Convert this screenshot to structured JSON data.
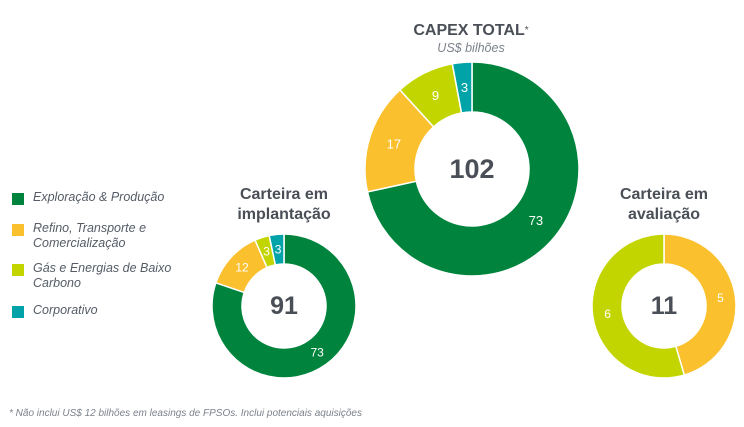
{
  "legend": {
    "items": [
      {
        "label": "Exploração & Produção",
        "color": "#00843d"
      },
      {
        "label": "Refino, Transporte e Comercialização",
        "color": "#fbc02d"
      },
      {
        "label": "Gás e Energias de Baixo Carbono",
        "color": "#c3d500"
      },
      {
        "label": "Corporativo",
        "color": "#00a3a8"
      }
    ]
  },
  "footnote": "* Não inclui US$ 12 bilhões em leasings de FPSOs. Inclui potenciais aquisições",
  "chart_data": [
    {
      "type": "pie",
      "title": "CAPEX TOTAL",
      "title_mark": "*",
      "subtitle": "US$ bilhões",
      "total": "102",
      "categories": [
        "Exploração & Produção",
        "Refino, Transporte e Comercialização",
        "Gás e Energias de Baixo Carbono",
        "Corporativo"
      ],
      "values": [
        73,
        17,
        9,
        3
      ]
    },
    {
      "type": "pie",
      "title": "Carteira em implantação",
      "total": "91",
      "categories": [
        "Exploração & Produção",
        "Refino, Transporte e Comercialização",
        "Gás e Energias de Baixo Carbono",
        "Corporativo"
      ],
      "values": [
        73,
        12,
        3,
        3
      ]
    },
    {
      "type": "pie",
      "title": "Carteira em avaliação",
      "total": "11",
      "categories": [
        "Refino, Transporte e Comercialização",
        "Gás e Energias de Baixo Carbono"
      ],
      "values": [
        5,
        6
      ]
    }
  ]
}
